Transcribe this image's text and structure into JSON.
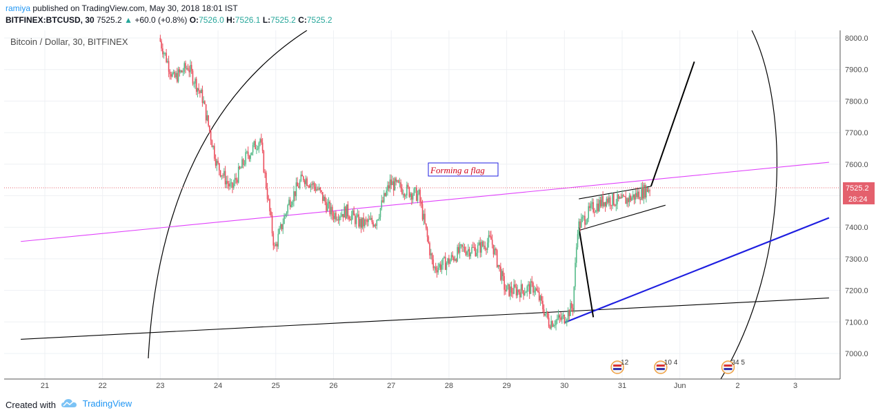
{
  "header": {
    "author": "ramiya",
    "published": "published on TradingView.com, May 30, 2018 18:01 IST",
    "symbol": "BITFINEX:BTCUSD, 30",
    "last": "7525.2",
    "arrow": "▲",
    "change": "+60.0 (+0.8%)",
    "o_label": "O:",
    "o_value": "7526.0",
    "h_label": "H:",
    "h_value": "7526.1",
    "l_label": "L:",
    "l_value": "7525.2",
    "c_label": "C:",
    "c_value": "7525.2"
  },
  "footer": {
    "created_with": "Created with",
    "brand": "TradingView"
  },
  "colors": {
    "up": "#53b987",
    "down": "#eb4d5c",
    "price_tag": "#e4606d",
    "trend_pink": "#e040fb",
    "trend_blue": "#1e1ee0",
    "drawing": "#000000",
    "annotation_border": "#1e1ee0",
    "annotation_text": "#d0021b"
  },
  "chart_data": {
    "type": "candlestick",
    "title": "Bitcoin / Dollar, 30, BITFINEX",
    "xlabel": "",
    "ylabel": "",
    "x_ticks": [
      "21",
      "22",
      "23",
      "24",
      "25",
      "26",
      "27",
      "28",
      "29",
      "30",
      "31",
      "Jun",
      "2",
      "3"
    ],
    "y_ticks": [
      "7000.0",
      "7100.0",
      "7200.0",
      "7300.0",
      "7400.0",
      "7500.0",
      "7600.0",
      "7700.0",
      "7800.0",
      "7900.0",
      "8000.0"
    ],
    "ylim": [
      6920,
      8020
    ],
    "xlim": [
      "May 20 14:00",
      "Jun 3 14:00"
    ],
    "grid": true,
    "current_price": "7525.2",
    "countdown": "28:24",
    "annotation": "Forming a flag",
    "price_path": [
      [
        "May 23 00:00",
        8000
      ],
      [
        "May 23 06:00",
        7870
      ],
      [
        "May 23 12:00",
        7910
      ],
      [
        "May 23 18:00",
        7810
      ],
      [
        "May 24 00:00",
        7600
      ],
      [
        "May 24 06:00",
        7520
      ],
      [
        "May 24 12:00",
        7620
      ],
      [
        "May 24 18:00",
        7680
      ],
      [
        "May 25 00:00",
        7330
      ],
      [
        "May 25 06:00",
        7480
      ],
      [
        "May 25 12:00",
        7560
      ],
      [
        "May 25 18:00",
        7520
      ],
      [
        "May 26 00:00",
        7440
      ],
      [
        "May 26 06:00",
        7450
      ],
      [
        "May 26 12:00",
        7410
      ],
      [
        "May 26 18:00",
        7420
      ],
      [
        "May 27 00:00",
        7540
      ],
      [
        "May 27 06:00",
        7520
      ],
      [
        "May 27 12:00",
        7500
      ],
      [
        "May 27 18:00",
        7270
      ],
      [
        "May 28 00:00",
        7290
      ],
      [
        "May 28 06:00",
        7330
      ],
      [
        "May 28 12:00",
        7330
      ],
      [
        "May 28 18:00",
        7360
      ],
      [
        "May 29 00:00",
        7200
      ],
      [
        "May 29 06:00",
        7200
      ],
      [
        "May 29 12:00",
        7210
      ],
      [
        "May 29 18:00",
        7100
      ],
      [
        "May 30 00:00",
        7110
      ],
      [
        "May 30 04:00",
        7150
      ],
      [
        "May 30 06:00",
        7400
      ],
      [
        "May 30 12:00",
        7460
      ],
      [
        "May 30 18:00",
        7490
      ],
      [
        "May 31 00:00",
        7480
      ],
      [
        "May 31 06:00",
        7500
      ],
      [
        "May 31 12:00",
        7525.2
      ]
    ],
    "trend_lines": [
      {
        "name": "pink",
        "from": [
          "May 20 14:00",
          7355
        ],
        "to": [
          "Jun 3 14:00",
          7606
        ]
      },
      {
        "name": "black-long",
        "from": [
          "May 20 14:00",
          7045
        ],
        "to": [
          "Jun 3 14:00",
          7176
        ]
      },
      {
        "name": "blue",
        "from": [
          "May 30 00:00",
          7098
        ],
        "to": [
          "Jun 3 14:00",
          7430
        ]
      },
      {
        "name": "flag-upper",
        "from": [
          "May 30 06:00",
          7490
        ],
        "to": [
          "May 31 12:00",
          7530
        ]
      },
      {
        "name": "flag-lower",
        "from": [
          "May 30 06:00",
          7390
        ],
        "to": [
          "May 31 18:00",
          7470
        ]
      },
      {
        "name": "pole",
        "from": [
          "May 30 06:00",
          7400
        ],
        "to": [
          "May 30 12:00",
          7115
        ]
      },
      {
        "name": "projection",
        "from": [
          "May 31 12:00",
          7530
        ],
        "to": [
          "Jun 1 06:00",
          7925
        ]
      }
    ],
    "events": [
      "12",
      "10 4",
      "34 5"
    ]
  }
}
